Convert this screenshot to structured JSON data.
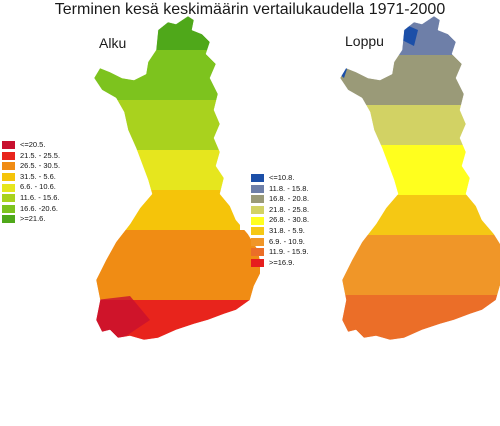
{
  "title": "Terminen kesä keskimäärin vertailukaudella 1971-2000",
  "maps": [
    {
      "title": "Alku",
      "legend": [
        {
          "label": "<=20.5.",
          "color": "#c8102e"
        },
        {
          "label": "21.5. - 25.5.",
          "color": "#e8241c"
        },
        {
          "label": "26.5. - 30.5.",
          "color": "#f08c14"
        },
        {
          "label": "31.5. - 5.6.",
          "color": "#f5c40a"
        },
        {
          "label": "6.6. - 10.6.",
          "color": "#e6e61e"
        },
        {
          "label": "11.6. - 15.6.",
          "color": "#a9d21e"
        },
        {
          "label": "16.6. -20.6.",
          "color": "#7dc31e"
        },
        {
          "label": ">=21.6.",
          "color": "#4fa81a"
        }
      ]
    },
    {
      "title": "Loppu",
      "legend": [
        {
          "label": "<=10.8.",
          "color": "#1c4fa8"
        },
        {
          "label": "11.8. - 15.8.",
          "color": "#6e7fa8"
        },
        {
          "label": "16.8. - 20.8.",
          "color": "#9a9a78"
        },
        {
          "label": "21.8. - 25.8.",
          "color": "#d2d264"
        },
        {
          "label": "26.8. - 30.8.",
          "color": "#ffff1e"
        },
        {
          "label": "31.8. - 5.9.",
          "color": "#f5c814"
        },
        {
          "label": "6.9. - 10.9.",
          "color": "#f09628"
        },
        {
          "label": "11.9. - 15.9.",
          "color": "#eb6e28"
        },
        {
          "label": ">=16.9.",
          "color": "#e61e1e"
        }
      ]
    }
  ]
}
